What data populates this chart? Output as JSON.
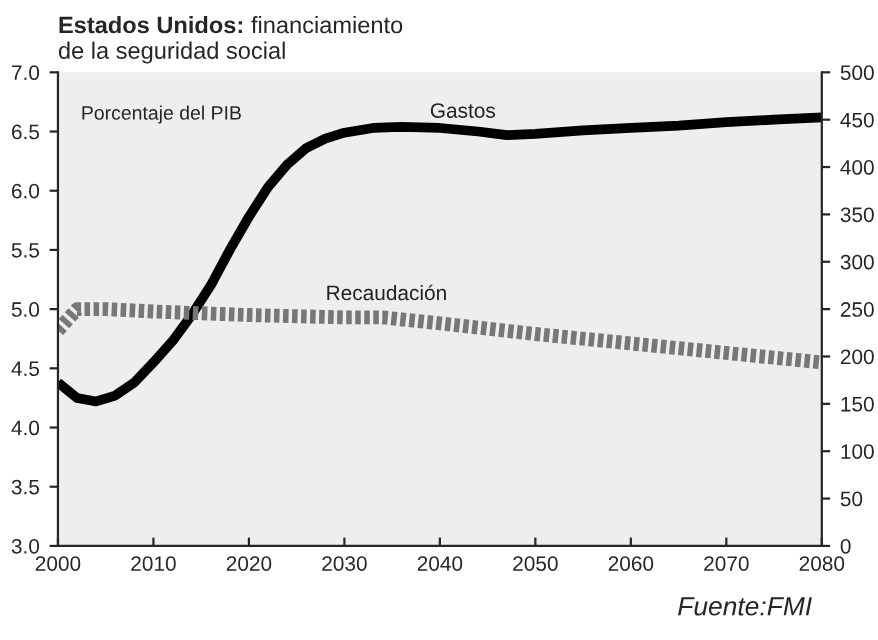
{
  "chart_data": {
    "type": "line",
    "title": "Estados Unidos:",
    "subtitle": "financiamiento\nde la seguridad social",
    "annotations": [
      "Porcentaje del PIB",
      "Fuente:FMI"
    ],
    "series": [
      {
        "name": "Gastos",
        "color": "#000000",
        "line_style": "solid",
        "x": [
          2000,
          2002,
          2004,
          2006,
          2008,
          2010,
          2012,
          2014,
          2016,
          2018,
          2020,
          2022,
          2024,
          2026,
          2028,
          2030,
          2033,
          2036,
          2040,
          2044,
          2047,
          2050,
          2055,
          2060,
          2065,
          2070,
          2075,
          2080
        ],
        "values": [
          4.38,
          4.25,
          4.22,
          4.27,
          4.38,
          4.55,
          4.73,
          4.95,
          5.2,
          5.5,
          5.78,
          6.03,
          6.22,
          6.36,
          6.44,
          6.49,
          6.53,
          6.54,
          6.53,
          6.5,
          6.47,
          6.48,
          6.51,
          6.53,
          6.55,
          6.58,
          6.6,
          6.62
        ]
      },
      {
        "name": "Recaudación",
        "color": "#777777",
        "line_style": "dotted",
        "x": [
          2000,
          2002,
          2005,
          2010,
          2020,
          2030,
          2034,
          2040,
          2050,
          2060,
          2070,
          2080
        ],
        "values": [
          4.82,
          5.0,
          5.0,
          4.98,
          4.95,
          4.93,
          4.93,
          4.88,
          4.79,
          4.71,
          4.63,
          4.55
        ]
      }
    ],
    "xlim": [
      2000,
      2080
    ],
    "xticks": [
      2000,
      2010,
      2020,
      2030,
      2040,
      2050,
      2060,
      2070,
      2080
    ],
    "ylim": [
      3.0,
      7.0
    ],
    "yticks": [
      {
        "value": 3.0,
        "label": "3.0"
      },
      {
        "value": 3.5,
        "label": "3.5"
      },
      {
        "value": 4.0,
        "label": "4.0"
      },
      {
        "value": 4.5,
        "label": "4.5"
      },
      {
        "value": 5.0,
        "label": "5.0"
      },
      {
        "value": 5.5,
        "label": "5.5"
      },
      {
        "value": 6.0,
        "label": "6.0"
      },
      {
        "value": 6.5,
        "label": "6.5"
      },
      {
        "value": 7.0,
        "label": "7.0"
      }
    ],
    "y2lim": [
      0,
      500
    ],
    "y2ticks": [
      0,
      50,
      100,
      150,
      200,
      250,
      300,
      350,
      400,
      450,
      500
    ],
    "grid": false,
    "legend": false
  }
}
